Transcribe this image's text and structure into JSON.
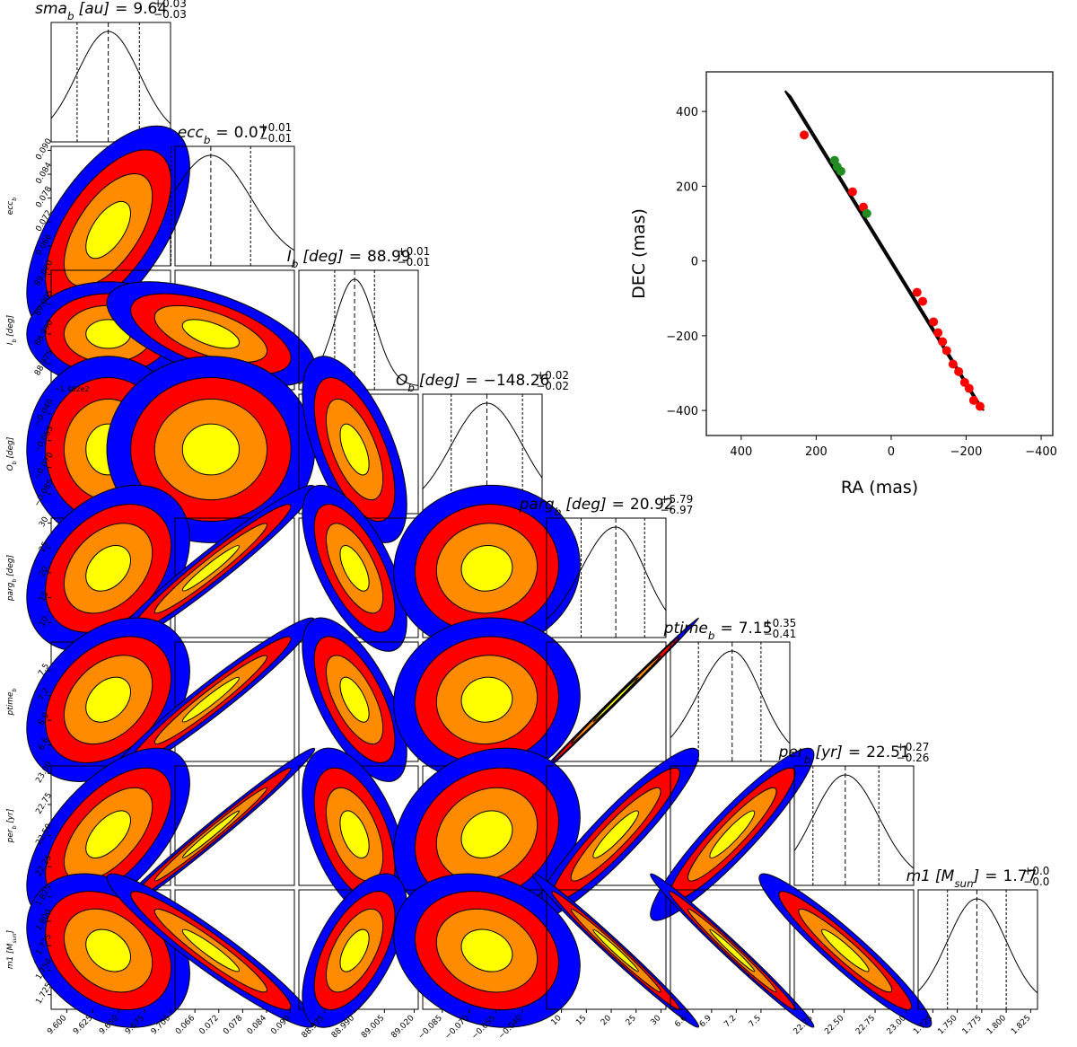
{
  "chart_data": [
    {
      "type": "corner",
      "equals": "=",
      "level_colors": [
        "#0000ff",
        "#ff0000",
        "#ff8c00",
        "#ffff00"
      ],
      "params": [
        {
          "name": "sma",
          "sub": "b",
          "unit": [
            "[au]"
          ],
          "median": 9.64,
          "err_plus": 0.03,
          "err_minus": -0.03,
          "err_labels": [
            "+0.03",
            "−0.03"
          ],
          "lim": [
            9.585,
            9.7
          ],
          "ticks": [
            {
              "value": 9.6,
              "label": "9.600"
            },
            {
              "value": 9.625,
              "label": "9.625"
            },
            {
              "value": 9.65,
              "label": "9.650"
            },
            {
              "value": 9.675,
              "label": "9.675"
            },
            {
              "value": 9.7,
              "label": "9.700"
            }
          ]
        },
        {
          "name": "ecc",
          "sub": "b",
          "unit": [],
          "median": 0.07,
          "err_plus": 0.01,
          "err_minus": -0.01,
          "err_labels": [
            "+0.01",
            "−0.01"
          ],
          "lim": [
            0.061,
            0.091
          ],
          "ticks": [
            0.066,
            0.072,
            0.078,
            0.084,
            {
              "value": 0.09,
              "label": "0.090"
            }
          ]
        },
        {
          "name": "I",
          "sub": "b",
          "unit": [
            "[deg]"
          ],
          "median": 88.99,
          "err_plus": 0.01,
          "err_minus": -0.01,
          "err_labels": [
            "+0.01",
            "−0.01"
          ],
          "lim": [
            88.962,
            89.022
          ],
          "ticks": [
            88.975,
            {
              "value": 88.99,
              "label": "88.990"
            },
            {
              "value": 89.005,
              "label": "89.005"
            },
            {
              "value": 89.02,
              "label": "89.020"
            }
          ]
        },
        {
          "name": "O",
          "sub": "b",
          "unit": [
            "[deg]"
          ],
          "median": -148.26,
          "median_label": "−148.26",
          "err_plus": 0.02,
          "err_minus": -0.02,
          "err_labels": [
            "+0.02",
            "−0.02"
          ],
          "offset_label": "−1.482e2",
          "lim": [
            -148.296,
            -148.229
          ],
          "ticks": [
            {
              "value": -148.285,
              "label": "−0.085"
            },
            {
              "value": -148.27,
              "label": "−0.070"
            },
            {
              "value": -148.255,
              "label": "−0.055"
            },
            {
              "value": -148.24,
              "label": "−0.040"
            }
          ]
        },
        {
          "name": "parg",
          "sub": "b",
          "unit": [
            "[deg]"
          ],
          "median": 20.92,
          "err_plus": 5.79,
          "err_minus": -6.97,
          "err_labels": [
            "+5.79",
            "−6.97"
          ],
          "lim": [
            7,
            31
          ],
          "ticks": [
            10,
            15,
            20,
            25,
            30
          ]
        },
        {
          "name": "ptime",
          "sub": "b",
          "unit": [],
          "median": 7.15,
          "err_plus": 0.35,
          "err_minus": -0.41,
          "err_labels": [
            "+0.35",
            "−0.41"
          ],
          "lim": [
            6.4,
            7.85
          ],
          "ticks": [
            6.6,
            6.9,
            7.2,
            7.5
          ]
        },
        {
          "name": "per",
          "sub": "b",
          "unit": [
            "[yr]"
          ],
          "median": 22.51,
          "err_plus": 0.27,
          "err_minus": -0.26,
          "err_labels": [
            "+0.27",
            "−0.26"
          ],
          "lim": [
            22.1,
            23.06
          ],
          "ticks": [
            22.25,
            {
              "value": 22.5,
              "label": "22.50"
            },
            22.75,
            {
              "value": 23,
              "label": "23.00"
            }
          ]
        },
        {
          "name": "m1",
          "unit": [
            "[M",
            "sun",
            "]"
          ],
          "median": 1.77,
          "err_plus": 0.03,
          "err_minus": -0.03,
          "err_labels": [
            "+0.0",
            "−0.0"
          ],
          "lim": [
            1.71,
            1.832
          ],
          "ticks": [
            1.725,
            {
              "value": 1.75,
              "label": "1.750"
            },
            1.775,
            {
              "value": 1.8,
              "label": "1.800"
            },
            1.825
          ]
        }
      ],
      "correlations": [
        [],
        [
          0.6
        ],
        [
          0.0,
          -0.6
        ],
        [
          0.0,
          0.0,
          -0.6
        ],
        [
          0.35,
          0.97,
          -0.65,
          0.05
        ],
        [
          0.35,
          0.97,
          -0.65,
          0.05,
          0.999
        ],
        [
          0.6,
          0.99,
          -0.5,
          0.2,
          0.93,
          0.93
        ],
        [
          -0.3,
          -0.95,
          0.6,
          -0.2,
          -0.99,
          -0.99,
          -0.95
        ]
      ]
    },
    {
      "type": "scatter",
      "x_label": "RA (mas)",
      "y_label": "DEC (mas)",
      "xlim": [
        493,
        -431
      ],
      "ylim": [
        -467,
        506
      ],
      "xticks": [
        400,
        200,
        0,
        {
          "value": -200,
          "label": "−200"
        },
        {
          "value": -400,
          "label": "−400"
        }
      ],
      "yticks": [
        {
          "value": -400,
          "label": "−400"
        },
        {
          "value": -200,
          "label": "−200"
        },
        0,
        200,
        400
      ],
      "series": [
        {
          "color": "#000000",
          "line": true,
          "x": [
            283,
            -232,
            -247,
            268,
            283
          ],
          "values": [
            455,
            -385,
            -400,
            440,
            455
          ]
        },
        {
          "color": "#ff0000",
          "x": [
            232,
            103,
            74,
            -69,
            -84,
            -113,
            -125,
            -137,
            -148,
            -165,
            -180,
            -196,
            -208,
            -220,
            -237
          ],
          "values": [
            337,
            185,
            144,
            -84,
            -108,
            -163,
            -192,
            -216,
            -240,
            -276,
            -296,
            -325,
            -341,
            -373,
            -389
          ]
        },
        {
          "color": "#228b22",
          "x": [
            151,
            144,
            134,
            65
          ],
          "values": [
            269,
            252,
            240,
            127
          ]
        }
      ]
    }
  ]
}
